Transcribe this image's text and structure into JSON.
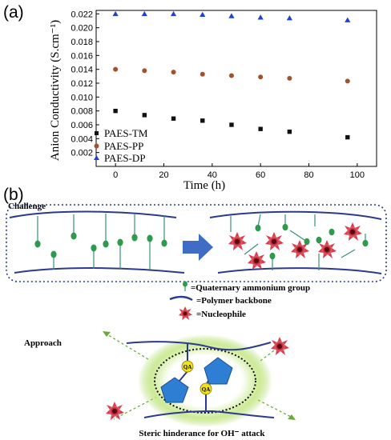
{
  "panel_a_label": "(a)",
  "panel_b_label": "(b)",
  "chart_data": {
    "type": "scatter",
    "xlabel": "Time (h)",
    "ylabel": "Anion Conductivity (S.cm⁻¹)",
    "xlim": [
      -8,
      108
    ],
    "ylim": [
      0.0,
      0.0225
    ],
    "x_ticks": [
      0,
      20,
      40,
      60,
      80,
      100
    ],
    "y_ticks": [
      0.002,
      0.004,
      0.006,
      0.008,
      0.01,
      0.012,
      0.014,
      0.016,
      0.018,
      0.02,
      0.022
    ],
    "y_tick_labels": [
      "0.002",
      "0.004",
      "0.006",
      "0.008",
      "0.010",
      "0.012",
      "0.014",
      "0.016",
      "0.018",
      "0.020",
      "0.022"
    ],
    "legend_position": "bottom-left",
    "series": [
      {
        "name": "PAES-TM",
        "marker": "square",
        "color": "#111111",
        "x": [
          0,
          12,
          24,
          36,
          48,
          60,
          72,
          96
        ],
        "y": [
          0.008,
          0.0074,
          0.0069,
          0.0066,
          0.006,
          0.0054,
          0.005,
          0.0042
        ]
      },
      {
        "name": "PAES-PP",
        "marker": "circle",
        "color": "#a0522d",
        "x": [
          0,
          12,
          24,
          36,
          48,
          60,
          72,
          96
        ],
        "y": [
          0.014,
          0.0138,
          0.0136,
          0.0133,
          0.0131,
          0.0129,
          0.0127,
          0.0123
        ]
      },
      {
        "name": "PAES-DP",
        "marker": "triangle",
        "color": "#1f3fd6",
        "x": [
          0,
          12,
          24,
          36,
          48,
          60,
          72,
          96
        ],
        "y": [
          0.022,
          0.022,
          0.022,
          0.0219,
          0.0217,
          0.0215,
          0.0214,
          0.0211
        ]
      }
    ]
  },
  "diagram": {
    "challenge_label": "Challenge",
    "legend_items": [
      {
        "label": "=Quaternary ammonium group"
      },
      {
        "label": "=Polymer backbone"
      },
      {
        "label": "=Nucleophile"
      }
    ],
    "approach_label": "Approach",
    "qa_label": "QA",
    "caption": "Steric hinderance for OH⁻ attack",
    "colors": {
      "backbone": "#2b3a8f",
      "qa_group": "#2e9a4c",
      "nucleophile": "#c0303f",
      "arrow": "#3f6cc4",
      "pentagon": "#2e7fd3",
      "glow": "#9ed44a"
    }
  }
}
